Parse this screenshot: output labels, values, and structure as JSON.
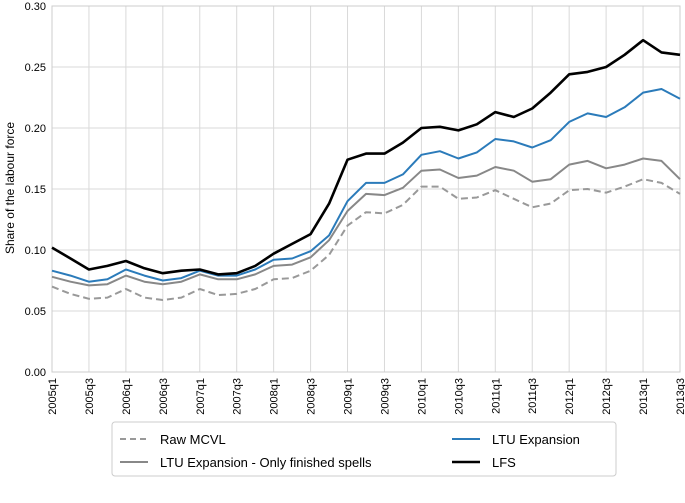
{
  "chart_data": {
    "type": "line",
    "title": "",
    "xlabel": "",
    "ylabel": "Share of the labour force",
    "ylim": [
      0,
      0.3
    ],
    "y_ticks": [
      "0.00",
      "0.05",
      "0.10",
      "0.15",
      "0.20",
      "0.25",
      "0.30"
    ],
    "x_tick_labels": [
      "2005q1",
      "2005q3",
      "2006q1",
      "2006q3",
      "2007q1",
      "2007q3",
      "2008q1",
      "2008q3",
      "2009q1",
      "2009q3",
      "2010q1",
      "2010q3",
      "2011q1",
      "2011q3",
      "2012q1",
      "2012q3",
      "2013q1",
      "2013q3"
    ],
    "x": [
      "2005q1",
      "2005q2",
      "2005q3",
      "2005q4",
      "2006q1",
      "2006q2",
      "2006q3",
      "2006q4",
      "2007q1",
      "2007q2",
      "2007q3",
      "2007q4",
      "2008q1",
      "2008q2",
      "2008q3",
      "2008q4",
      "2009q1",
      "2009q2",
      "2009q3",
      "2009q4",
      "2010q1",
      "2010q2",
      "2010q3",
      "2010q4",
      "2011q1",
      "2011q2",
      "2011q3",
      "2011q4",
      "2012q1",
      "2012q2",
      "2012q3",
      "2012q4",
      "2013q1",
      "2013q2",
      "2013q3"
    ],
    "grid": true,
    "legend_position": "bottom",
    "series": [
      {
        "name": "Raw MCVL",
        "color": "#999999",
        "style": "dashed",
        "values": [
          0.07,
          0.064,
          0.06,
          0.061,
          0.068,
          0.061,
          0.059,
          0.061,
          0.068,
          0.063,
          0.064,
          0.068,
          0.076,
          0.077,
          0.083,
          0.096,
          0.12,
          0.131,
          0.13,
          0.137,
          0.152,
          0.152,
          0.142,
          0.143,
          0.149,
          0.142,
          0.135,
          0.138,
          0.149,
          0.15,
          0.147,
          0.152,
          0.158,
          0.155,
          0.146
        ]
      },
      {
        "name": "LTU Expansion - Only finished spells",
        "color": "#888888",
        "style": "solid",
        "values": [
          0.078,
          0.074,
          0.071,
          0.072,
          0.079,
          0.074,
          0.072,
          0.074,
          0.08,
          0.076,
          0.076,
          0.08,
          0.087,
          0.088,
          0.094,
          0.108,
          0.132,
          0.146,
          0.145,
          0.151,
          0.165,
          0.166,
          0.159,
          0.161,
          0.168,
          0.165,
          0.156,
          0.158,
          0.17,
          0.173,
          0.167,
          0.17,
          0.175,
          0.173,
          0.158
        ]
      },
      {
        "name": "LTU Expansion",
        "color": "#2b7bba",
        "style": "solid",
        "values": [
          0.083,
          0.079,
          0.074,
          0.076,
          0.084,
          0.079,
          0.075,
          0.077,
          0.083,
          0.079,
          0.079,
          0.084,
          0.092,
          0.093,
          0.099,
          0.112,
          0.14,
          0.155,
          0.155,
          0.162,
          0.178,
          0.181,
          0.175,
          0.18,
          0.191,
          0.189,
          0.184,
          0.19,
          0.205,
          0.212,
          0.209,
          0.217,
          0.229,
          0.232,
          0.224
        ]
      },
      {
        "name": "LFS",
        "color": "#000000",
        "style": "solid",
        "values": [
          0.102,
          0.093,
          0.084,
          0.087,
          0.091,
          0.085,
          0.081,
          0.083,
          0.084,
          0.08,
          0.081,
          0.087,
          0.097,
          0.105,
          0.113,
          0.138,
          0.174,
          0.179,
          0.179,
          0.188,
          0.2,
          0.201,
          0.198,
          0.203,
          0.213,
          0.209,
          0.216,
          0.229,
          0.244,
          0.246,
          0.25,
          0.26,
          0.272,
          0.262,
          0.26
        ]
      }
    ]
  }
}
